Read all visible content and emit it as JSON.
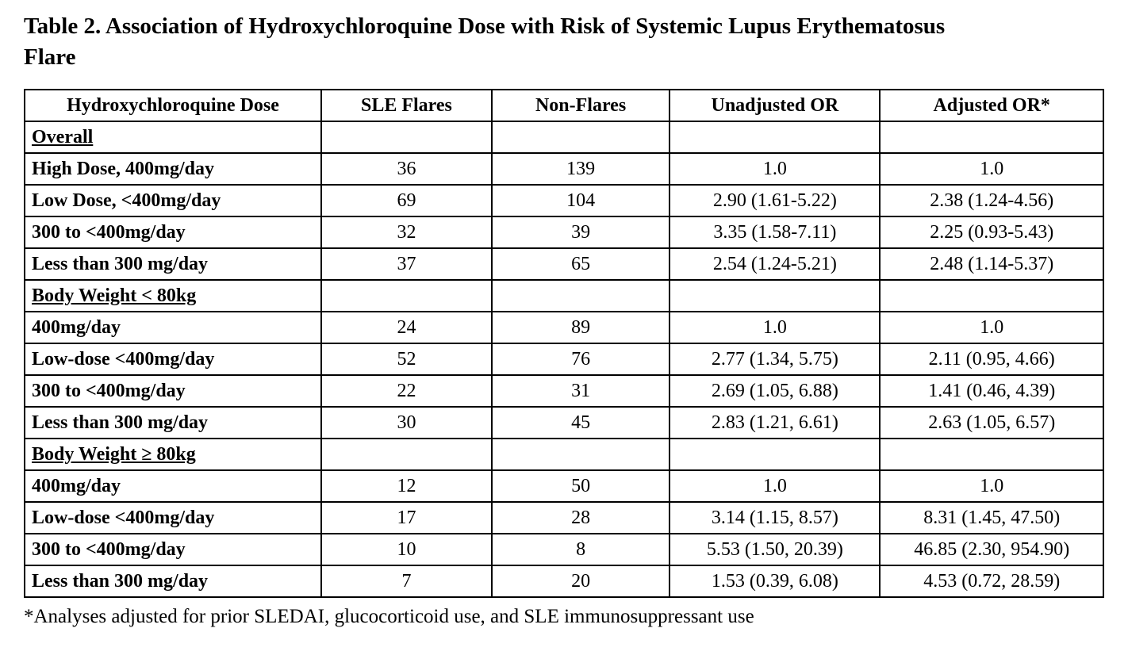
{
  "title": "Table 2. Association of Hydroxychloroquine Dose with Risk of Systemic Lupus Erythematosus Flare",
  "footnote": "*Analyses adjusted for prior SLEDAI, glucocorticoid use, and SLE immunosuppressant use",
  "table": {
    "columns": [
      "Hydroxychloroquine Dose",
      "SLE Flares",
      "Non-Flares",
      "Unadjusted OR",
      "Adjusted OR*"
    ],
    "rows": [
      {
        "label": "Overall",
        "style": "section",
        "indent": 0,
        "cells": [
          "",
          "",
          "",
          ""
        ]
      },
      {
        "label": "High Dose, 400mg/day",
        "style": "row",
        "indent": 1,
        "cells": [
          "36",
          "139",
          "1.0",
          "1.0"
        ]
      },
      {
        "label": "Low Dose, <400mg/day",
        "style": "row",
        "indent": 1,
        "cells": [
          "69",
          "104",
          "2.90 (1.61-5.22)",
          "2.38 (1.24-4.56)"
        ]
      },
      {
        "label": "300 to <400mg/day",
        "style": "row",
        "indent": 2,
        "cells": [
          "32",
          "39",
          "3.35 (1.58-7.11)",
          "2.25 (0.93-5.43)"
        ]
      },
      {
        "label": "Less than 300 mg/day",
        "style": "row",
        "indent": 2,
        "cells": [
          "37",
          "65",
          "2.54 (1.24-5.21)",
          "2.48 (1.14-5.37)"
        ]
      },
      {
        "label": "Body Weight < 80kg",
        "style": "section",
        "indent": 0,
        "cells": [
          "",
          "",
          "",
          ""
        ]
      },
      {
        "label": "400mg/day",
        "style": "row",
        "indent": 1,
        "cells": [
          "24",
          "89",
          "1.0",
          "1.0"
        ]
      },
      {
        "label": "Low-dose <400mg/day",
        "style": "row",
        "indent": 1,
        "cells": [
          "52",
          "76",
          "2.77 (1.34, 5.75)",
          "2.11 (0.95, 4.66)"
        ]
      },
      {
        "label": "300 to <400mg/day",
        "style": "row",
        "indent": 2,
        "cells": [
          "22",
          "31",
          "2.69 (1.05, 6.88)",
          "1.41 (0.46, 4.39)"
        ]
      },
      {
        "label": "Less than 300 mg/day",
        "style": "row",
        "indent": 2,
        "cells": [
          "30",
          "45",
          "2.83 (1.21, 6.61)",
          "2.63 (1.05, 6.57)"
        ]
      },
      {
        "label": "Body Weight ≥ 80kg",
        "style": "section",
        "indent": 0,
        "cells": [
          "",
          "",
          "",
          ""
        ]
      },
      {
        "label": "400mg/day",
        "style": "row",
        "indent": 1,
        "cells": [
          "12",
          "50",
          "1.0",
          "1.0"
        ]
      },
      {
        "label": "Low-dose <400mg/day",
        "style": "row",
        "indent": 1,
        "cells": [
          "17",
          "28",
          "3.14 (1.15, 8.57)",
          "8.31 (1.45, 47.50)"
        ]
      },
      {
        "label": "300 to <400mg/day",
        "style": "row",
        "indent": 2,
        "cells": [
          "10",
          "8",
          "5.53 (1.50, 20.39)",
          "46.85 (2.30, 954.90)"
        ]
      },
      {
        "label": "Less than 300 mg/day",
        "style": "row",
        "indent": 2,
        "cells": [
          "7",
          "20",
          "1.53 (0.39, 6.08)",
          "4.53 (0.72, 28.59)"
        ]
      }
    ]
  }
}
